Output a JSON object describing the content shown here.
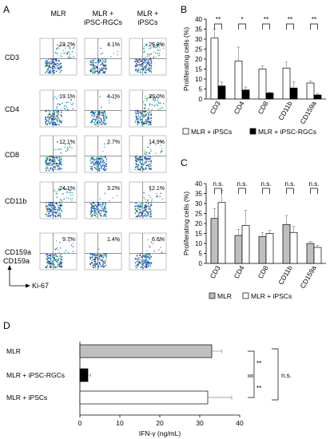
{
  "panels": {
    "A": "A",
    "B": "B",
    "C": "C",
    "D": "D"
  },
  "flow": {
    "columns": [
      "MLR",
      "MLR +\niPSC-RGCs",
      "MLR +\niPSCs"
    ],
    "rows": [
      {
        "label": "CD3",
        "percents": [
          "23.2%",
          "4.1%",
          "29.8%"
        ]
      },
      {
        "label": "CD4",
        "percents": [
          "19.1%",
          "4.1%",
          "29.0%"
        ]
      },
      {
        "label": "CD8",
        "percents": [
          "12.1%",
          "2.7%",
          "14.9%"
        ]
      },
      {
        "label": "CD11b",
        "percents": [
          "24.1%",
          "3.2%",
          "12.1%"
        ]
      },
      {
        "label": "CD159a",
        "percents": [
          "9.7%",
          "1.4%",
          "6.6%"
        ]
      }
    ],
    "y_axis_label": "CD159a",
    "x_axis_label": "Ki-67",
    "dot_colors": [
      "#1f3fbf",
      "#19a6c9",
      "#2fbf4f",
      "#d9c622",
      "#e3652a"
    ]
  },
  "chart_data": [
    {
      "type": "bar",
      "panel": "B",
      "categories": [
        "CD3",
        "CD4",
        "CD8",
        "CD11b",
        "CD159a"
      ],
      "series": [
        {
          "name": "MLR + iPSCs",
          "color": "#ffffff",
          "values": [
            30.5,
            19.0,
            15.0,
            15.5,
            8.0
          ],
          "errors": [
            4.5,
            7.0,
            1.5,
            3.0,
            1.0
          ]
        },
        {
          "name": "MLR + iPSC-RGCs",
          "color": "#000000",
          "values": [
            6.5,
            4.5,
            3.0,
            5.5,
            2.0
          ],
          "errors": [
            2.0,
            1.5,
            0.5,
            3.0,
            0.7
          ]
        }
      ],
      "significance": [
        "**",
        "*",
        "**",
        "**",
        "**"
      ],
      "ylabel": "Proliferating cells (%)",
      "ylim": [
        0,
        40
      ],
      "yticks": [
        0,
        5,
        10,
        15,
        20,
        25,
        30,
        35,
        40
      ],
      "legend": "bottom"
    },
    {
      "type": "bar",
      "panel": "C",
      "categories": [
        "CD3",
        "CD4",
        "CD8",
        "CD11b",
        "CD159a"
      ],
      "series": [
        {
          "name": "MLR",
          "color": "#bfbfbf",
          "values": [
            22.5,
            14.0,
            13.5,
            19.5,
            10.0
          ],
          "errors": [
            5.0,
            3.0,
            2.0,
            4.5,
            1.0
          ]
        },
        {
          "name": "MLR + iPSCs",
          "color": "#ffffff",
          "values": [
            30.5,
            19.0,
            15.0,
            15.5,
            8.0
          ],
          "errors": [
            6.0,
            7.5,
            1.5,
            3.0,
            1.0
          ]
        }
      ],
      "significance": [
        "n.s.",
        "n.s.",
        "n.s.",
        "n.s.",
        "n.s."
      ],
      "ylabel": "Proliferating cells (%)",
      "ylim": [
        0,
        40
      ],
      "yticks": [
        0,
        5,
        10,
        15,
        20,
        25,
        30,
        35,
        40
      ],
      "legend": "bottom"
    },
    {
      "type": "bar",
      "orientation": "horizontal",
      "panel": "D",
      "categories": [
        "MLR",
        "MLR + iPSC-RGCs",
        "MLR + iPSCs"
      ],
      "values": [
        33.0,
        2.0,
        32.0
      ],
      "errors": [
        2.5,
        0.7,
        6.0
      ],
      "colors": [
        "#bfbfbf",
        "#000000",
        "#ffffff"
      ],
      "significance": [
        {
          "between": [
            "MLR",
            "MLR + iPSC-RGCs"
          ],
          "label": "**"
        },
        {
          "between": [
            "MLR + iPSC-RGCs",
            "MLR + iPSCs"
          ],
          "label": "**"
        },
        {
          "between": [
            "MLR",
            "MLR + iPSCs"
          ],
          "label": "n.s."
        }
      ],
      "xlabel": "IFN-γ  (ng/mL)",
      "xlim": [
        0,
        40
      ],
      "xticks": [
        0,
        10,
        20,
        30,
        40
      ]
    }
  ]
}
